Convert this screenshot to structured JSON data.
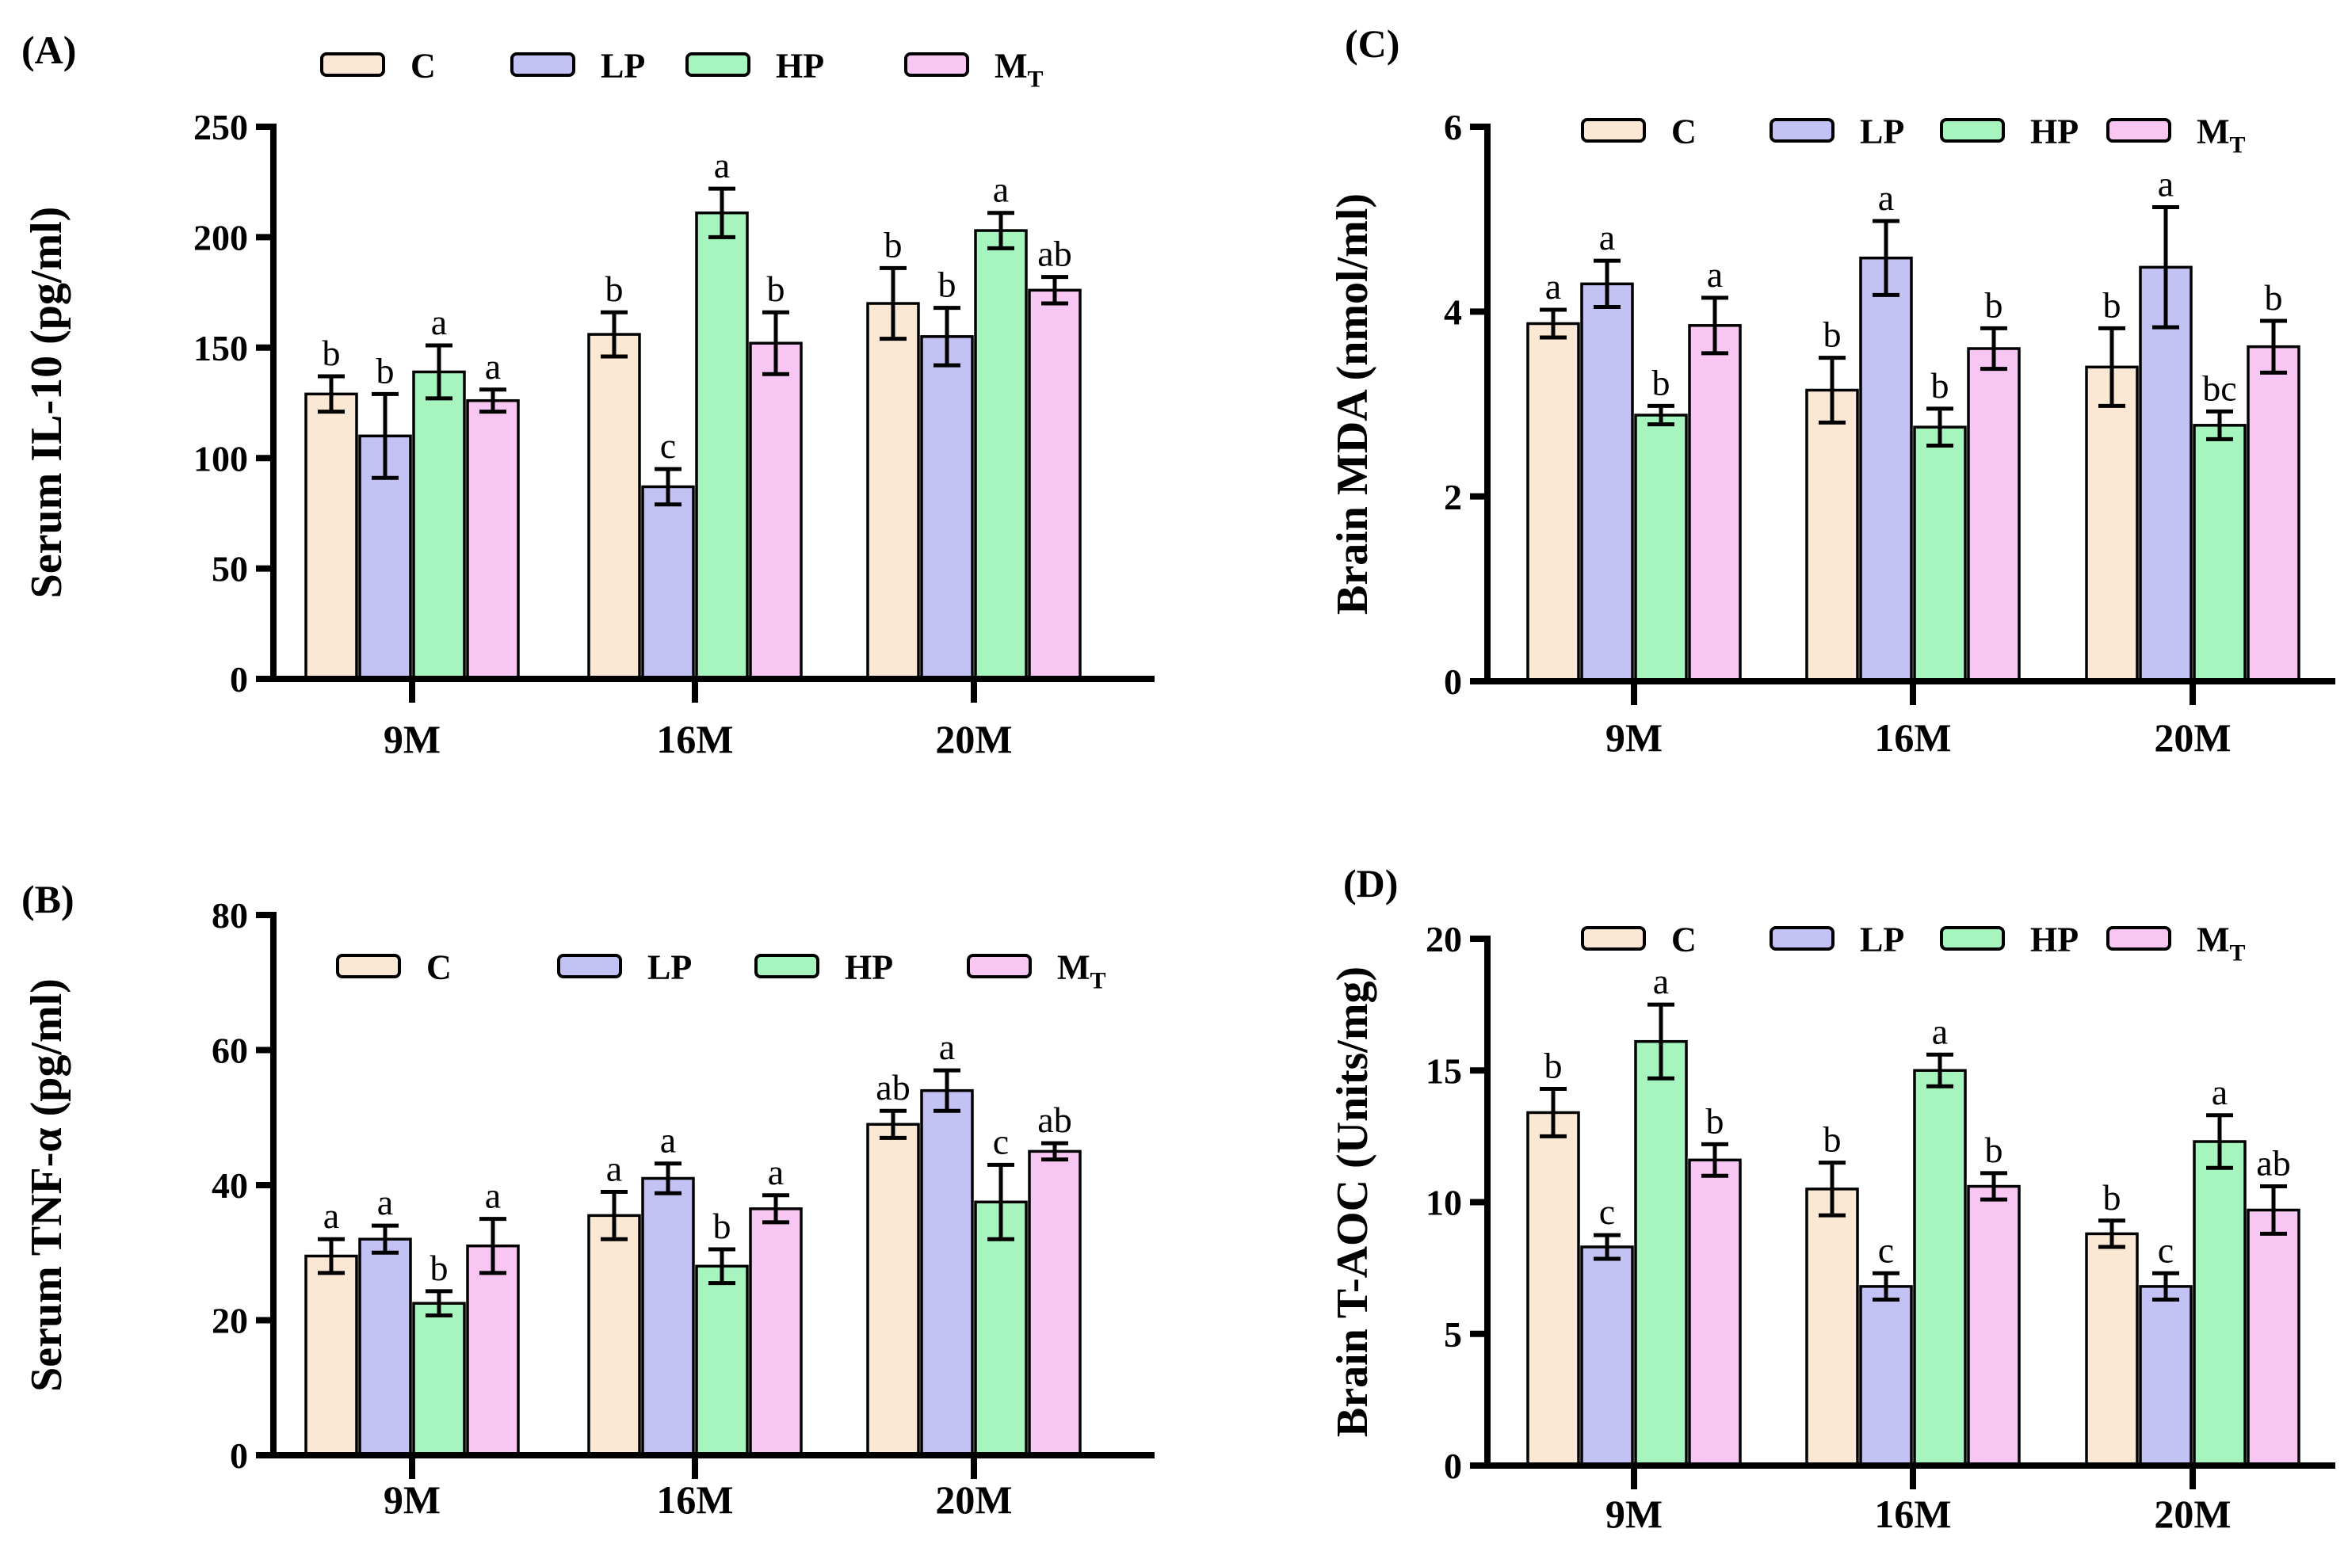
{
  "figure_title": "",
  "legend": {
    "items": [
      {
        "key": "C",
        "label": "C",
        "subscript": "",
        "color": "#fae8d5"
      },
      {
        "key": "LP",
        "label": "LP",
        "subscript": "",
        "color": "#c2c2f4"
      },
      {
        "key": "HP",
        "label": "HP",
        "subscript": "",
        "color": "#a6f5bf"
      },
      {
        "key": "MT",
        "label": "M",
        "subscript": "T",
        "color": "#f8c6f2"
      }
    ],
    "border_color": "#000000"
  },
  "chart_data": [
    {
      "type": "bar",
      "panel_label": "(A)",
      "ylabel": "Serum IL-10 (pg/ml)",
      "xlabel": "",
      "categories": [
        "9M",
        "16M",
        "20M"
      ],
      "ylim": [
        0,
        250
      ],
      "yticks": [
        0,
        50,
        100,
        150,
        200,
        250
      ],
      "grid": "off",
      "legend_position": "above-plot",
      "series": [
        {
          "name": "C",
          "color": "#fae8d5",
          "values": [
            129,
            156,
            170
          ],
          "errors": [
            8,
            10,
            16
          ],
          "letters": [
            "b",
            "b",
            "b"
          ]
        },
        {
          "name": "LP",
          "color": "#c2c2f4",
          "values": [
            110,
            87,
            155
          ],
          "errors": [
            19,
            8,
            13
          ],
          "letters": [
            "b",
            "c",
            "b"
          ]
        },
        {
          "name": "HP",
          "color": "#a6f5bf",
          "values": [
            139,
            211,
            203
          ],
          "errors": [
            12,
            11,
            8
          ],
          "letters": [
            "a",
            "a",
            "a"
          ]
        },
        {
          "name": "MT",
          "color": "#f8c6f2",
          "values": [
            126,
            152,
            176
          ],
          "errors": [
            5,
            14,
            6
          ],
          "letters": [
            "a",
            "b",
            "ab"
          ]
        }
      ]
    },
    {
      "type": "bar",
      "panel_label": "(B)",
      "ylabel": "Serum TNF-α (pg/ml)",
      "xlabel": "",
      "categories": [
        "9M",
        "16M",
        "20M"
      ],
      "ylim": [
        0,
        80
      ],
      "yticks": [
        0,
        20,
        40,
        60,
        80
      ],
      "grid": "off",
      "legend_position": "inside-top",
      "series": [
        {
          "name": "C",
          "color": "#fae8d5",
          "values": [
            29.5,
            35.5,
            49
          ],
          "errors": [
            2.5,
            3.5,
            2
          ],
          "letters": [
            "a",
            "a",
            "ab"
          ]
        },
        {
          "name": "LP",
          "color": "#c2c2f4",
          "values": [
            32,
            41,
            54
          ],
          "errors": [
            2,
            2.2,
            3
          ],
          "letters": [
            "a",
            "a",
            "a"
          ]
        },
        {
          "name": "HP",
          "color": "#a6f5bf",
          "values": [
            22.5,
            28,
            37.5
          ],
          "errors": [
            1.8,
            2.5,
            5.5
          ],
          "letters": [
            "b",
            "b",
            "c"
          ]
        },
        {
          "name": "MT",
          "color": "#f8c6f2",
          "values": [
            31,
            36.5,
            45
          ],
          "errors": [
            4,
            2,
            1.2
          ],
          "letters": [
            "a",
            "a",
            "ab"
          ]
        }
      ]
    },
    {
      "type": "bar",
      "panel_label": "(C)",
      "ylabel": "Brain MDA (nmol/ml)",
      "xlabel": "",
      "categories": [
        "9M",
        "16M",
        "20M"
      ],
      "ylim": [
        0,
        6
      ],
      "yticks": [
        0,
        2,
        4,
        6
      ],
      "grid": "off",
      "legend_position": "inside-top",
      "series": [
        {
          "name": "C",
          "color": "#fae8d5",
          "values": [
            3.87,
            3.15,
            3.4
          ],
          "errors": [
            0.15,
            0.35,
            0.42
          ],
          "letters": [
            "a",
            "b",
            "b"
          ]
        },
        {
          "name": "LP",
          "color": "#c2c2f4",
          "values": [
            4.3,
            4.58,
            4.48
          ],
          "errors": [
            0.25,
            0.4,
            0.65
          ],
          "letters": [
            "a",
            "a",
            "a"
          ]
        },
        {
          "name": "HP",
          "color": "#a6f5bf",
          "values": [
            2.88,
            2.75,
            2.77
          ],
          "errors": [
            0.1,
            0.2,
            0.15
          ],
          "letters": [
            "b",
            "b",
            "bc"
          ]
        },
        {
          "name": "MT",
          "color": "#f8c6f2",
          "values": [
            3.85,
            3.6,
            3.62
          ],
          "errors": [
            0.3,
            0.22,
            0.28
          ],
          "letters": [
            "a",
            "b",
            "b"
          ]
        }
      ]
    },
    {
      "type": "bar",
      "panel_label": "(D)",
      "ylabel": "Brain T-AOC (Units/mg)",
      "xlabel": "",
      "categories": [
        "9M",
        "16M",
        "20M"
      ],
      "ylim": [
        0,
        20
      ],
      "yticks": [
        0,
        5,
        10,
        15,
        20
      ],
      "grid": "off",
      "legend_position": "inside-top",
      "series": [
        {
          "name": "C",
          "color": "#fae8d5",
          "values": [
            13.4,
            10.5,
            8.8
          ],
          "errors": [
            0.9,
            1.0,
            0.5
          ],
          "letters": [
            "b",
            "b",
            "b"
          ]
        },
        {
          "name": "LP",
          "color": "#c2c2f4",
          "values": [
            8.3,
            6.8,
            6.8
          ],
          "errors": [
            0.45,
            0.5,
            0.5
          ],
          "letters": [
            "c",
            "c",
            "c"
          ]
        },
        {
          "name": "HP",
          "color": "#a6f5bf",
          "values": [
            16.1,
            15.0,
            12.3
          ],
          "errors": [
            1.4,
            0.6,
            1.0
          ],
          "letters": [
            "a",
            "a",
            "a"
          ]
        },
        {
          "name": "MT",
          "color": "#f8c6f2",
          "values": [
            11.6,
            10.6,
            9.7
          ],
          "errors": [
            0.6,
            0.5,
            0.9
          ],
          "letters": [
            "b",
            "b",
            "ab"
          ]
        }
      ]
    }
  ]
}
